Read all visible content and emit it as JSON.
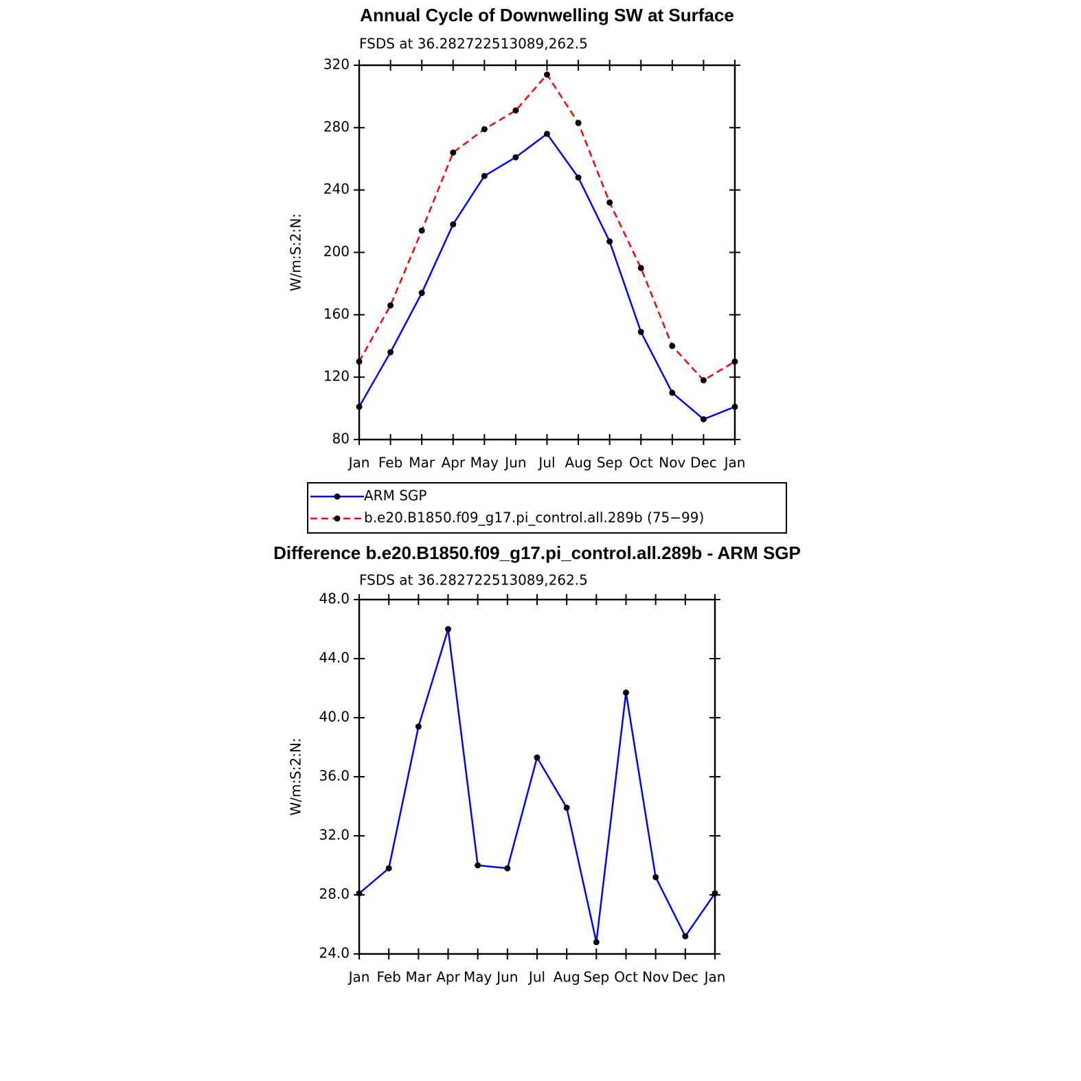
{
  "chart_data": [
    {
      "type": "line",
      "title": "Annual Cycle of Downwelling SW at Surface",
      "subtitle": "FSDS at 36.282722513089,262.5",
      "y_label": "W/m:S:2:N:",
      "categories": [
        "Jan",
        "Feb",
        "Mar",
        "Apr",
        "May",
        "Jun",
        "Jul",
        "Aug",
        "Sep",
        "Oct",
        "Nov",
        "Dec",
        "Jan"
      ],
      "series": [
        {
          "name": "ARM SGP",
          "color": "#0000ff",
          "line_style": "solid",
          "values": [
            101,
            136,
            174,
            218,
            249,
            261,
            276,
            248,
            207,
            149,
            110,
            93,
            101
          ]
        },
        {
          "name": "b.e20.B1850.f09_g17.pi_control.all.289b (75−99)",
          "color": "#ff0000",
          "line_style": "dashed",
          "values": [
            130,
            166,
            214,
            264,
            279,
            291,
            314,
            283,
            232,
            190,
            140,
            118,
            130
          ]
        }
      ],
      "ylim": [
        80,
        320
      ],
      "yticks": [
        80,
        120,
        160,
        200,
        240,
        280,
        320
      ],
      "legend": "below",
      "marker_color": "#000000"
    },
    {
      "type": "line",
      "title": "Difference b.e20.B1850.f09_g17.pi_control.all.289b - ARM SGP",
      "subtitle": "FSDS at 36.282722513089,262.5",
      "y_label": "W/m:S:2:N:",
      "categories": [
        "Jan",
        "Feb",
        "Mar",
        "Apr",
        "May",
        "Jun",
        "Jul",
        "Aug",
        "Sep",
        "Oct",
        "Nov",
        "Dec",
        "Jan"
      ],
      "values": [
        28.1,
        29.8,
        39.4,
        46.0,
        30.0,
        29.8,
        37.3,
        33.9,
        24.8,
        41.7,
        29.2,
        25.2,
        28.1
      ],
      "color": "#0000ff",
      "line_style": "solid",
      "ylim": [
        24,
        48
      ],
      "yticks": [
        {
          "value": 24,
          "label": "24.0"
        },
        {
          "value": 28,
          "label": "28.0"
        },
        {
          "value": 32,
          "label": "32.0"
        },
        {
          "value": 36,
          "label": "36.0"
        },
        {
          "value": 40,
          "label": "40.0"
        },
        {
          "value": 44,
          "label": "44.0"
        },
        {
          "value": 48,
          "label": "48.0"
        }
      ],
      "marker_color": "#000000"
    }
  ]
}
